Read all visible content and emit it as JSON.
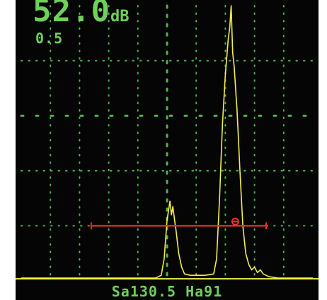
{
  "display": {
    "gain_value": "52.0",
    "gain_unit": "dB",
    "gain_step": "0.5",
    "status_line": "Sa130.5 Ha91"
  },
  "colors": {
    "background": "#050505",
    "text": "#6fd05a",
    "grid": "#48b845",
    "trace": "#f5ef4d",
    "gate": "#e8302a"
  },
  "chart_data": {
    "type": "line",
    "title": "",
    "xlabel": "",
    "ylabel": "",
    "grid": true,
    "xlim": [
      0,
      100
    ],
    "ylim": [
      0,
      100
    ],
    "series": [
      {
        "values": [
          [
            0,
            1
          ],
          [
            46,
            1
          ],
          [
            48,
            2
          ],
          [
            49,
            8
          ],
          [
            50,
            22
          ],
          [
            51,
            29
          ],
          [
            51.5,
            24
          ],
          [
            52,
            27
          ],
          [
            52.6,
            22
          ],
          [
            53,
            19
          ],
          [
            54,
            10
          ],
          [
            55,
            5
          ],
          [
            56,
            2.5
          ],
          [
            58,
            2
          ],
          [
            63,
            2
          ],
          [
            66,
            2.5
          ],
          [
            67,
            8
          ],
          [
            68,
            30
          ],
          [
            69,
            57
          ],
          [
            70,
            75
          ],
          [
            71,
            88
          ],
          [
            71.5,
            92
          ],
          [
            72,
            100
          ],
          [
            72.5,
            83
          ],
          [
            73,
            78
          ],
          [
            74,
            62
          ],
          [
            75,
            40
          ],
          [
            76,
            20
          ],
          [
            77,
            10
          ],
          [
            78,
            6
          ],
          [
            79,
            4
          ],
          [
            80,
            5
          ],
          [
            81,
            3
          ],
          [
            82,
            4
          ],
          [
            83,
            2.5
          ],
          [
            85,
            1.5
          ],
          [
            88,
            1
          ],
          [
            100,
            1
          ]
        ]
      }
    ],
    "gate": {
      "x_start": 24,
      "x_end": 84,
      "level": 20
    }
  }
}
